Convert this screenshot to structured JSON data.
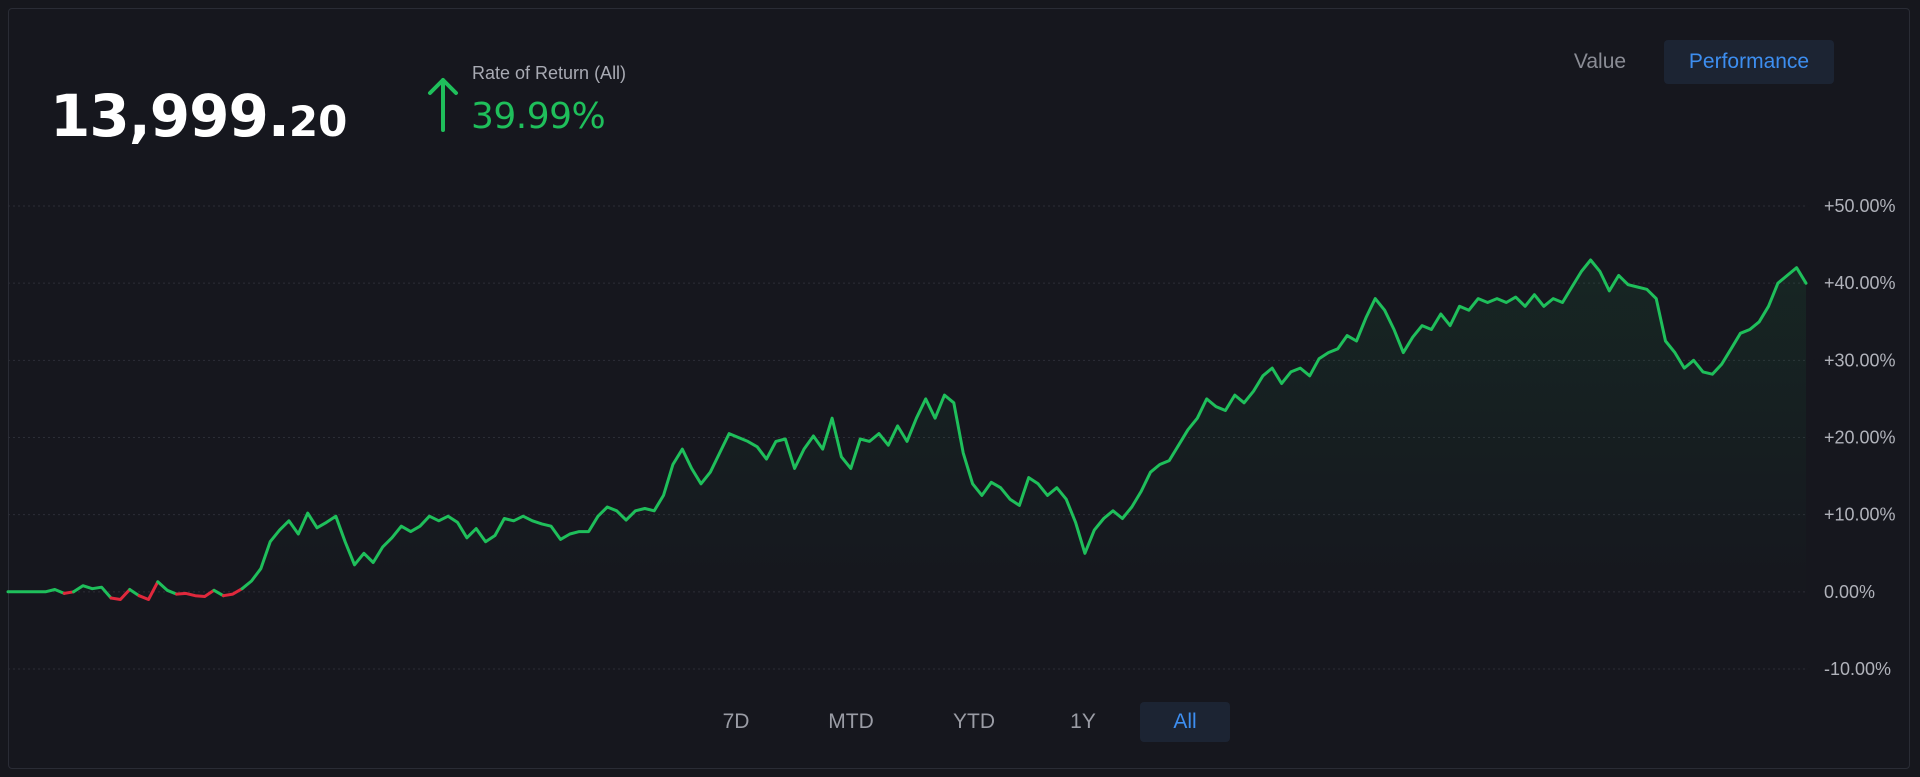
{
  "header": {
    "value_int": "13,999.",
    "value_dec": "20",
    "ror_label": "Rate of Return (All)",
    "ror_value": "39.99%",
    "ror_icon": "arrow-up-icon"
  },
  "mode_toggle": {
    "value_label": "Value",
    "performance_label": "Performance",
    "selected": "Performance"
  },
  "range_buttons": {
    "items": [
      "7D",
      "MTD",
      "YTD",
      "1Y",
      "All"
    ],
    "selected": "All"
  },
  "colors": {
    "background": "#16171d",
    "positive": "#1fbf5b",
    "negative": "#e0283c",
    "accent": "#3d8ef0",
    "selected_bg": "#1c2433"
  },
  "chart_data": {
    "type": "line",
    "ylabel_format": "percent",
    "ylim": [
      -10,
      50
    ],
    "ticks": [
      "+50.00%",
      "+40.00%",
      "+30.00%",
      "+20.00%",
      "+10.00%",
      "0.00%",
      "-10.00%"
    ],
    "tick_values": [
      50,
      40,
      30,
      20,
      10,
      0,
      -10
    ],
    "grid": true,
    "series": [
      {
        "values": [
          0,
          0,
          0,
          0,
          0,
          0.3,
          -0.2,
          0,
          0.8,
          0.4,
          0.6,
          -0.8,
          -1,
          0.3,
          -0.5,
          -1,
          1.3,
          0.2,
          -0.3,
          -0.2,
          -0.5,
          -0.6,
          0.2,
          -0.5,
          -0.3,
          0.4,
          1.4,
          3,
          6.5,
          8,
          9.2,
          7.5,
          10.2,
          8.3,
          9,
          9.8,
          6.5,
          3.5,
          5,
          3.8,
          5.8,
          7,
          8.5,
          7.8,
          8.5,
          9.8,
          9.2,
          9.8,
          9,
          7,
          8.2,
          6.5,
          7.3,
          9.5,
          9.2,
          9.8,
          9.2,
          8.8,
          8.5,
          6.8,
          7.5,
          7.8,
          7.8,
          9.8,
          11,
          10.5,
          9.3,
          10.5,
          10.8,
          10.5,
          12.5,
          16.5,
          18.5,
          16,
          14,
          15.5,
          18,
          20.5,
          20,
          19.5,
          18.8,
          17.2,
          19.5,
          19.8,
          16,
          18.5,
          20.2,
          18.5,
          22.5,
          17.5,
          16,
          19.8,
          19.5,
          20.5,
          19,
          21.5,
          19.5,
          22.5,
          25,
          22.5,
          25.5,
          24.5,
          18,
          14,
          12.5,
          14.2,
          13.5,
          12,
          11.2,
          14.8,
          14,
          12.5,
          13.5,
          12,
          9,
          5,
          8,
          9.5,
          10.5,
          9.5,
          11,
          13,
          15.5,
          16.5,
          17,
          19,
          21,
          22.5,
          25,
          24,
          23.5,
          25.5,
          24.5,
          26,
          28,
          29,
          27,
          28.5,
          29,
          28,
          30.2,
          31,
          31.5,
          33.2,
          32.5,
          35.5,
          38,
          36.5,
          34,
          31,
          33,
          34.5,
          34,
          36,
          34.5,
          37,
          36.5,
          38,
          37.5,
          38,
          37.5,
          38.2,
          37,
          38.5,
          37,
          38,
          37.5,
          39.5,
          41.5,
          43,
          41.5,
          39,
          41,
          39.8,
          39.5,
          39.2,
          38,
          32.5,
          31,
          29,
          30,
          28.5,
          28.2,
          29.5,
          31.5,
          33.5,
          34,
          35,
          37,
          40,
          41,
          42,
          39.99
        ]
      }
    ]
  }
}
